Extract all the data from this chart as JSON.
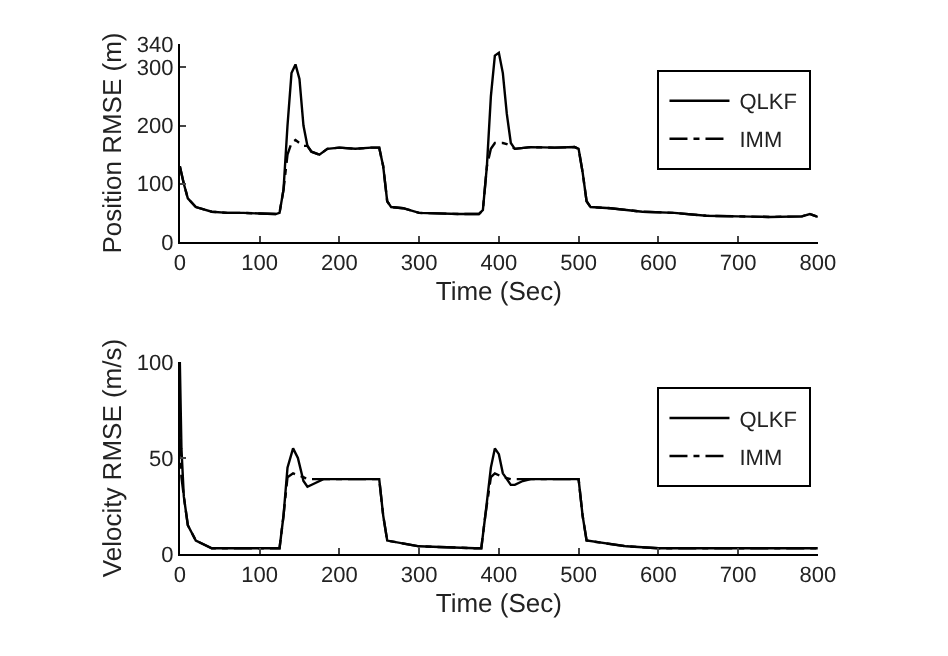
{
  "chart_data": [
    {
      "type": "line",
      "xlabel": "Time (Sec)",
      "ylabel": "Position RMSE (m)",
      "xlim": [
        0,
        800
      ],
      "xticks": [
        0,
        100,
        200,
        300,
        400,
        500,
        600,
        700,
        800
      ],
      "ylim": [
        0,
        340
      ],
      "yticks": [
        0,
        100,
        200,
        300,
        340
      ],
      "legend": "top right",
      "x": [
        0,
        5,
        10,
        20,
        40,
        60,
        80,
        100,
        120,
        125,
        130,
        135,
        140,
        145,
        150,
        155,
        160,
        165,
        175,
        185,
        200,
        220,
        240,
        250,
        255,
        260,
        265,
        280,
        300,
        350,
        375,
        380,
        385,
        390,
        395,
        400,
        405,
        410,
        415,
        420,
        440,
        470,
        495,
        500,
        505,
        510,
        515,
        540,
        580,
        620,
        660,
        700,
        740,
        780,
        790,
        800
      ],
      "series": [
        {
          "name": "QLKF",
          "color": "#000000",
          "line_style": "solid",
          "values": [
            130,
            100,
            75,
            60,
            52,
            50,
            50,
            49,
            48,
            50,
            90,
            200,
            290,
            305,
            280,
            200,
            165,
            155,
            150,
            160,
            162,
            160,
            162,
            162,
            130,
            70,
            60,
            58,
            50,
            48,
            48,
            55,
            130,
            250,
            320,
            325,
            290,
            220,
            170,
            160,
            163,
            162,
            163,
            160,
            120,
            70,
            60,
            58,
            52,
            50,
            45,
            44,
            43,
            44,
            48,
            43
          ]
        },
        {
          "name": "IMM",
          "color": "#000000",
          "line_style": "dashdot",
          "values": [
            130,
            100,
            75,
            60,
            52,
            50,
            50,
            49,
            48,
            50,
            90,
            150,
            170,
            175,
            170,
            165,
            165,
            155,
            150,
            160,
            162,
            160,
            162,
            162,
            130,
            70,
            60,
            58,
            50,
            48,
            48,
            55,
            130,
            160,
            170,
            170,
            170,
            168,
            165,
            160,
            163,
            162,
            163,
            160,
            120,
            70,
            60,
            58,
            52,
            50,
            45,
            44,
            43,
            44,
            48,
            43
          ]
        }
      ]
    },
    {
      "type": "line",
      "xlabel": "Time (Sec)",
      "ylabel": "Velocity RMSE (m/s)",
      "xlim": [
        0,
        800
      ],
      "xticks": [
        0,
        100,
        200,
        300,
        400,
        500,
        600,
        700,
        800
      ],
      "ylim": [
        0,
        100
      ],
      "yticks": [
        0,
        50,
        100
      ],
      "legend": "top right",
      "x": [
        0,
        2,
        5,
        10,
        20,
        40,
        100,
        125,
        130,
        135,
        142,
        148,
        155,
        160,
        170,
        180,
        250,
        255,
        260,
        300,
        370,
        378,
        383,
        390,
        395,
        400,
        405,
        415,
        420,
        430,
        440,
        500,
        505,
        510,
        560,
        600,
        800
      ],
      "series": [
        {
          "name": "QLKF",
          "color": "#000000",
          "line_style": "solid",
          "values": [
            100,
            55,
            30,
            15,
            7,
            3,
            3,
            3,
            20,
            45,
            55,
            50,
            38,
            35,
            37,
            39,
            39,
            20,
            7,
            4,
            3,
            3,
            20,
            45,
            55,
            52,
            42,
            36,
            36,
            38,
            39,
            39,
            20,
            7,
            4,
            3,
            3
          ]
        },
        {
          "name": "IMM",
          "color": "#000000",
          "line_style": "dashdot",
          "values": [
            60,
            40,
            30,
            15,
            7,
            3,
            3,
            3,
            20,
            40,
            42,
            41,
            40,
            39,
            39,
            39,
            39,
            20,
            7,
            4,
            3,
            3,
            20,
            40,
            42,
            41,
            40,
            39,
            39,
            39,
            39,
            39,
            20,
            7,
            4,
            3,
            3
          ]
        }
      ]
    }
  ]
}
